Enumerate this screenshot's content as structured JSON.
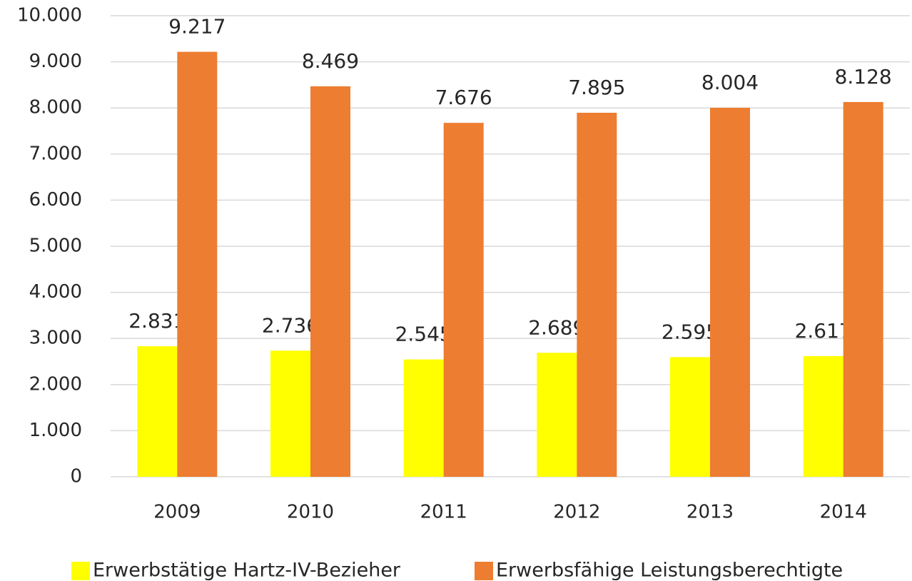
{
  "chart_data": {
    "type": "bar",
    "categories": [
      "2009",
      "2010",
      "2011",
      "2012",
      "2013",
      "2014"
    ],
    "series": [
      {
        "name": "Erwerbstätige Hartz-IV-Bezieher",
        "color": "#ffff00",
        "values": [
          2831,
          2736,
          2545,
          2689,
          2595,
          2617
        ],
        "value_labels": [
          "2.831",
          "2.736",
          "2.545",
          "2.689",
          "2.595",
          "2.617"
        ]
      },
      {
        "name": "Erwerbsfähige Leistungsberechtigte",
        "color": "#ed7d31",
        "values": [
          9217,
          8469,
          7676,
          7895,
          8004,
          8128
        ],
        "value_labels": [
          "9.217",
          "8.469",
          "7.676",
          "7.895",
          "8.004",
          "8.128"
        ]
      }
    ],
    "ylim": [
      0,
      10000
    ],
    "yticks": [
      0,
      {
        "value": 1000,
        "label": "1.000"
      },
      {
        "value": 2000,
        "label": "2.000"
      },
      {
        "value": 3000,
        "label": "3.000"
      },
      {
        "value": 4000,
        "label": "4.000"
      },
      {
        "value": 5000,
        "label": "5.000"
      },
      {
        "value": 6000,
        "label": "6.000"
      },
      {
        "value": 7000,
        "label": "7.000"
      },
      {
        "value": 8000,
        "label": "8.000"
      },
      {
        "value": 9000,
        "label": "9.000"
      },
      {
        "value": 10000,
        "label": "10.000"
      }
    ],
    "grid": true
  }
}
